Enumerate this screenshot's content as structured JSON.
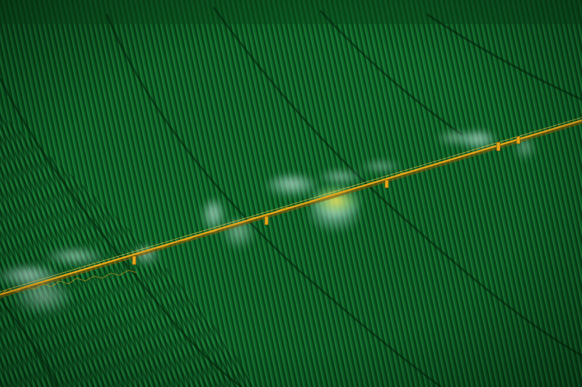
{
  "scene": {
    "subject": "center-pivot-irrigation",
    "colors": {
      "field_dark": "#073a14",
      "field_mid": "#0f6a2a",
      "field_light": "#2a9a45",
      "row_shadow": "#04270c",
      "pipe": "#e8a81a",
      "pipe_shadow": "#8a5a08",
      "spray": "#bfe6d8",
      "glow": "#f2e04a"
    }
  }
}
